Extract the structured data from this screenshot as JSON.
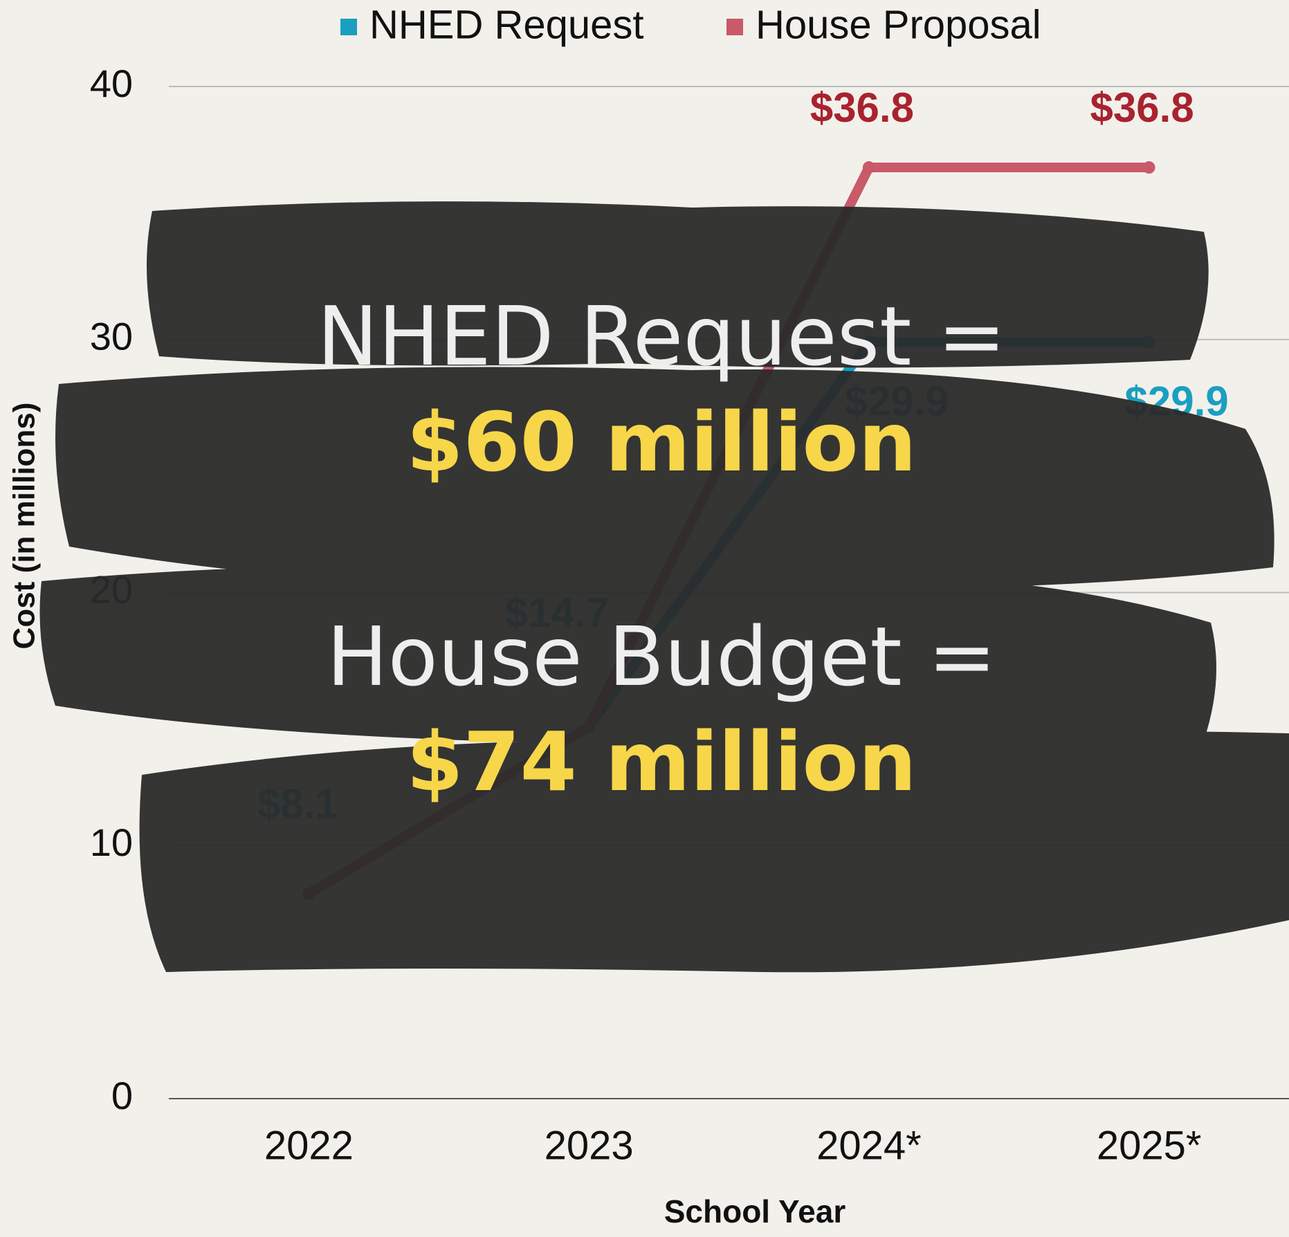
{
  "chart_data": {
    "type": "line",
    "x_label": "School Year",
    "y_label": "Cost (in millions)",
    "categories": [
      "2022",
      "2023",
      "2024*",
      "2025*"
    ],
    "series": [
      {
        "name": "NHED Request",
        "color": "#1a9fc0",
        "label_color": "#1a9fc0",
        "values": [
          8.1,
          14.7,
          29.9,
          29.9
        ],
        "value_labels": [
          "$8.1",
          "$14.7",
          "$29.9",
          "$29.9"
        ]
      },
      {
        "name": "House Proposal",
        "color": "#c85a6a",
        "label_color": "#a8232f",
        "values": [
          8.1,
          14.7,
          36.8,
          36.8
        ],
        "value_labels": [
          null,
          null,
          "$36.8",
          "$36.8"
        ]
      }
    ],
    "ylim": [
      0,
      40
    ],
    "yticks": [
      0,
      10,
      20,
      30,
      40
    ],
    "grid": true,
    "legend": "top"
  },
  "overlay": {
    "line1": "NHED Request =",
    "amount1": "$60 million",
    "line2": "House Budget =",
    "amount2": "$74 million"
  }
}
